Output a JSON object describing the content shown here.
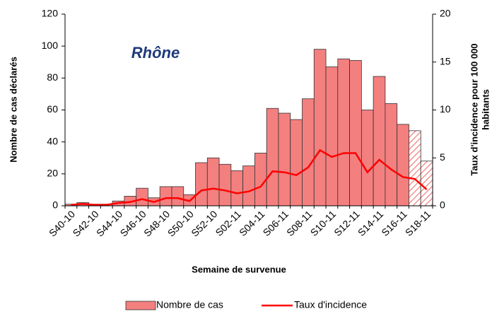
{
  "chart_data": {
    "type": "bar-line",
    "annotation": "Rhône",
    "xlabel": "Semaine de survenue",
    "ylabel": "Nombre de cas déclarés",
    "y2label": [
      "Taux d'incidence pour 100 000",
      "habitants"
    ],
    "categories": [
      "S40-10",
      null,
      "S42-10",
      null,
      "S44-10",
      null,
      "S46-10",
      null,
      "S48-10",
      null,
      "S50-10",
      null,
      "S52-10",
      null,
      "S02-11",
      null,
      "S04-11",
      null,
      "S06-11",
      null,
      "S08-11",
      null,
      "S10-11",
      null,
      "S12-11",
      null,
      "S14-11",
      null,
      "S16-11",
      null,
      "S18-11"
    ],
    "series": [
      {
        "name": "Nombre de cas",
        "type": "bar",
        "color": "#f47f7f",
        "hatched": [
          false,
          false,
          false,
          false,
          false,
          false,
          false,
          false,
          false,
          false,
          false,
          false,
          false,
          false,
          false,
          false,
          false,
          false,
          false,
          false,
          false,
          false,
          false,
          false,
          false,
          false,
          false,
          false,
          false,
          true,
          true
        ],
        "values": [
          1,
          2,
          1,
          1,
          3,
          6,
          11,
          5,
          12,
          12,
          7,
          27,
          30,
          26,
          22,
          25,
          33,
          61,
          58,
          54,
          67,
          98,
          87,
          92,
          91,
          60,
          81,
          64,
          51,
          47,
          28
        ]
      },
      {
        "name": "Taux d'incidence",
        "type": "line",
        "axis": "y2",
        "color": "#ff0000",
        "values": [
          0.1,
          0.2,
          0.1,
          0.1,
          0.3,
          0.4,
          0.7,
          0.4,
          0.8,
          0.8,
          0.5,
          1.6,
          1.8,
          1.6,
          1.3,
          1.5,
          2.0,
          3.6,
          3.5,
          3.2,
          4.0,
          5.8,
          5.1,
          5.5,
          5.5,
          3.5,
          4.8,
          3.8,
          3.0,
          2.8,
          1.7
        ]
      }
    ],
    "ylim": [
      0,
      120
    ],
    "yticks": [
      0,
      20,
      40,
      60,
      80,
      100,
      120
    ],
    "y2lim": [
      0,
      20
    ],
    "y2ticks": [
      0,
      5,
      10,
      15,
      20
    ],
    "grid": false,
    "legend": "bottom"
  }
}
